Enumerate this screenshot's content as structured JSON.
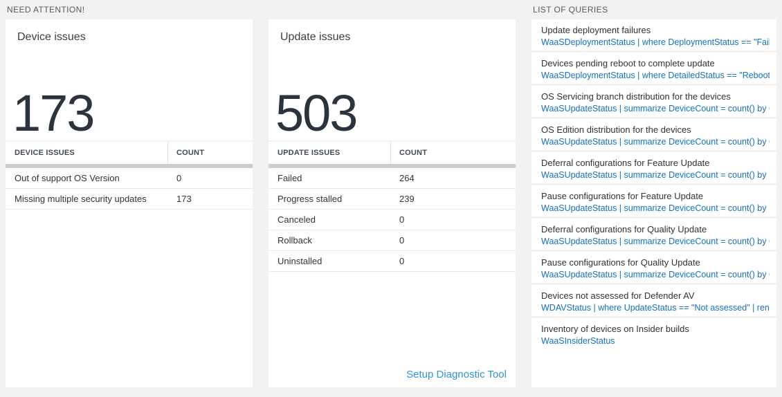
{
  "need_attention": {
    "title": "NEED ATTENTION!",
    "device_card": {
      "title": "Device issues",
      "count": "173"
    },
    "device_table": {
      "col1_header": "DEVICE ISSUES",
      "col2_header": "COUNT",
      "rows": [
        {
          "label": "Out of support OS Version",
          "count": "0"
        },
        {
          "label": "Missing multiple security updates",
          "count": "173"
        }
      ]
    },
    "update_card": {
      "title": "Update issues",
      "count": "503"
    },
    "update_table": {
      "col1_header": "UPDATE ISSUES",
      "col2_header": "COUNT",
      "rows": [
        {
          "label": "Failed",
          "count": "264"
        },
        {
          "label": "Progress stalled",
          "count": "239"
        },
        {
          "label": "Canceled",
          "count": "0"
        },
        {
          "label": "Rollback",
          "count": "0"
        },
        {
          "label": "Uninstalled",
          "count": "0"
        }
      ],
      "footer_link": "Setup Diagnostic Tool"
    }
  },
  "queries": {
    "title": "LIST OF QUERIES",
    "items": [
      {
        "title": "Update deployment failures",
        "query": "WaaSDeploymentStatus | where DeploymentStatus == \"Failed\" |..."
      },
      {
        "title": "Devices pending reboot to complete update",
        "query": "WaaSDeploymentStatus | where DetailedStatus == \"Reboot pend..."
      },
      {
        "title": "OS Servicing branch distribution for the devices",
        "query": "WaaSUpdateStatus | summarize DeviceCount = count() by OSSer..."
      },
      {
        "title": "OS Edition distribution for the devices",
        "query": "WaaSUpdateStatus | summarize DeviceCount = count() by OSEdit..."
      },
      {
        "title": "Deferral configurations for Feature Update",
        "query": "WaaSUpdateStatus | summarize DeviceCount = count() by Featur..."
      },
      {
        "title": "Pause configurations for Feature Update",
        "query": "WaaSUpdateStatus | summarize DeviceCount = count() by Featur..."
      },
      {
        "title": "Deferral configurations for Quality Update",
        "query": "WaaSUpdateStatus | summarize DeviceCount = count() by Qualit..."
      },
      {
        "title": "Pause configurations for Quality Update",
        "query": "WaaSUpdateStatus | summarize DeviceCount = count() by Qualit..."
      },
      {
        "title": "Devices not assessed for Defender AV",
        "query": "WDAVStatus | where UpdateStatus == \"Not assessed\" | render ta..."
      },
      {
        "title": "Inventory of devices on Insider builds",
        "query": "WaaSInsiderStatus"
      }
    ]
  },
  "colors": {
    "page_background": "#f2f2f2",
    "card_background": "#ffffff",
    "big_number_dark": "#2b333e",
    "query_blue": "#1371c3",
    "link_blue": "#3093d6",
    "grid_separator_gray": "#c9ced2"
  }
}
